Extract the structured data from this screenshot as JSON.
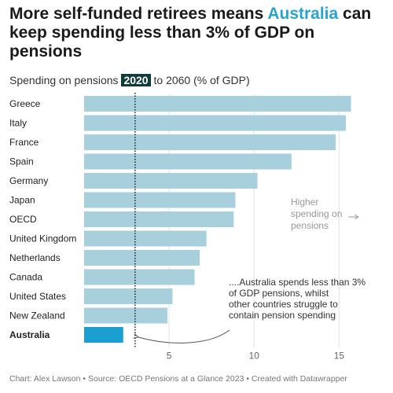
{
  "title": {
    "part1": "More self-funded retirees means ",
    "highlight": "Australia",
    "part2": " can keep spending less than 3% of GDP on pensions"
  },
  "subtitle": {
    "prefix": "Spending on pensions ",
    "year": "2020",
    "suffix": " to 2060 (% of GDP)"
  },
  "footer": "Chart: Alex Lawson • Source: OECD Pensions at a Glance 2023 • Created with Datawrapper",
  "colors": {
    "bar": "#a7cfdc",
    "highlight_bar": "#1a9fd0",
    "highlight_text": "#2aa3cf",
    "subtitle_badge": "#0f3b3b"
  },
  "chart_data": {
    "type": "bar",
    "orientation": "horizontal",
    "categories": [
      "Greece",
      "Italy",
      "France",
      "Spain",
      "Germany",
      "Japan",
      "OECD",
      "United Kingdom",
      "Netherlands",
      "Canada",
      "United States",
      "New Zealand",
      "Australia"
    ],
    "values": [
      15.7,
      15.4,
      14.8,
      12.2,
      10.2,
      8.9,
      8.8,
      7.2,
      6.8,
      6.5,
      5.2,
      4.9,
      2.3
    ],
    "highlight": "Australia",
    "x_ticks": [
      5,
      10,
      15
    ],
    "xlim": [
      0,
      16
    ],
    "reference_line": 3,
    "annotations": {
      "higher": "Higher spending on pensions",
      "australia": "....Australia spends less than 3% of GDP pensions, whilst other countries struggle to contain pension spending"
    }
  }
}
